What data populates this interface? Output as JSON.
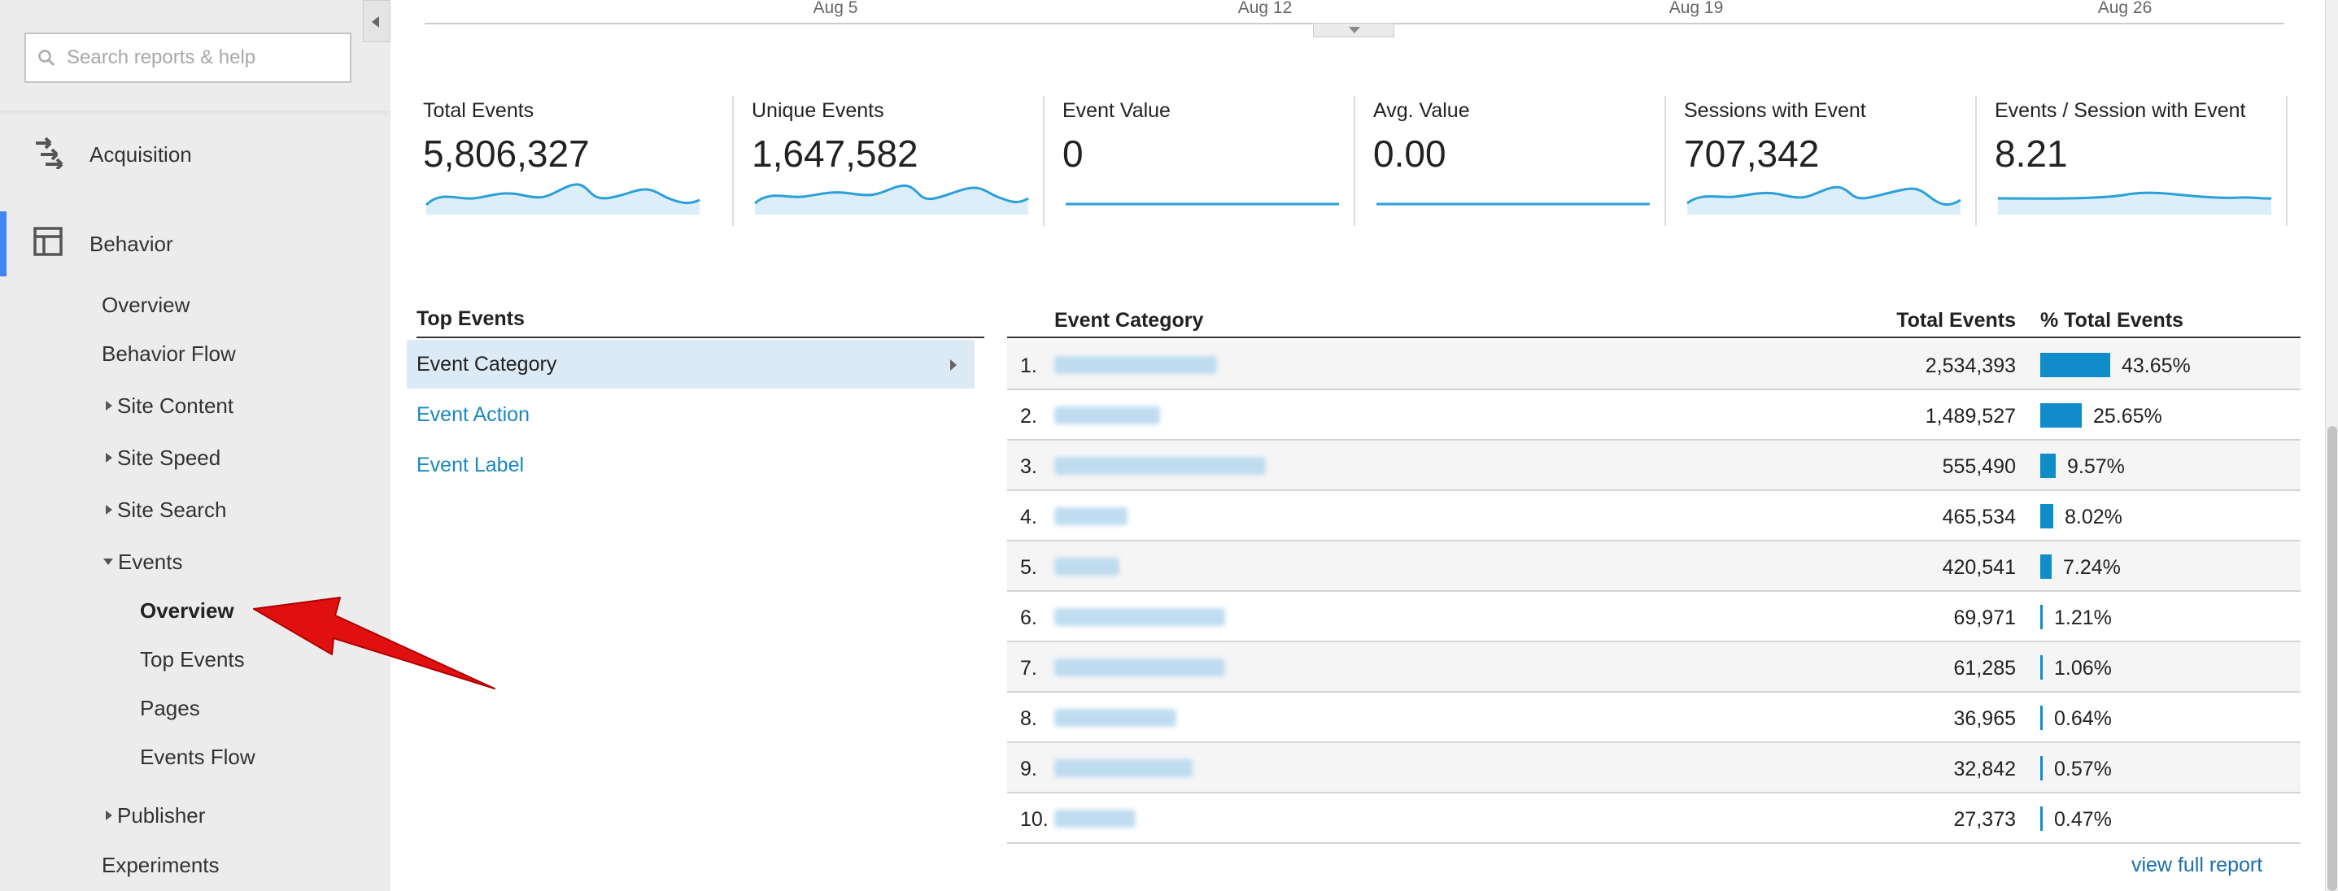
{
  "sidebar": {
    "search_placeholder": "Search reports & help",
    "acquisition_label": "Acquisition",
    "behavior_label": "Behavior",
    "items": {
      "overview": "Overview",
      "behavior_flow": "Behavior Flow",
      "site_content": "Site Content",
      "site_speed": "Site Speed",
      "site_search": "Site Search",
      "events": "Events",
      "events_overview": "Overview",
      "top_events": "Top Events",
      "pages": "Pages",
      "events_flow": "Events Flow",
      "publisher": "Publisher",
      "experiments": "Experiments"
    },
    "active_color": "#4285f4"
  },
  "timeline": {
    "labels": [
      "Aug 5",
      "Aug 12",
      "Aug 19",
      "Aug 26"
    ]
  },
  "metrics": [
    {
      "name": "Total Events",
      "value": "5,806,327",
      "sparkline": "wavy"
    },
    {
      "name": "Unique Events",
      "value": "1,647,582",
      "sparkline": "wavy"
    },
    {
      "name": "Event Value",
      "value": "0",
      "sparkline": "flat"
    },
    {
      "name": "Avg. Value",
      "value": "0.00",
      "sparkline": "flat"
    },
    {
      "name": "Sessions with Event",
      "value": "707,342",
      "sparkline": "wavy"
    },
    {
      "name": "Events / Session with Event",
      "value": "8.21",
      "sparkline": "gentle"
    }
  ],
  "top_events": {
    "header": "Top Events",
    "items": [
      {
        "label": "Event Category",
        "selected": true
      },
      {
        "label": "Event Action",
        "selected": false
      },
      {
        "label": "Event Label",
        "selected": false
      }
    ]
  },
  "event_table": {
    "headers": {
      "category": "Event Category",
      "total": "Total Events",
      "pct": "% Total Events"
    },
    "rows": [
      {
        "rank": "1.",
        "total": "2,534,393",
        "pct": "43.65%",
        "share": 43.65
      },
      {
        "rank": "2.",
        "total": "1,489,527",
        "pct": "25.65%",
        "share": 25.65
      },
      {
        "rank": "3.",
        "total": "555,490",
        "pct": "9.57%",
        "share": 9.57
      },
      {
        "rank": "4.",
        "total": "465,534",
        "pct": "8.02%",
        "share": 8.02
      },
      {
        "rank": "5.",
        "total": "420,541",
        "pct": "7.24%",
        "share": 7.24
      },
      {
        "rank": "6.",
        "total": "69,971",
        "pct": "1.21%",
        "share": 1.21
      },
      {
        "rank": "7.",
        "total": "61,285",
        "pct": "1.06%",
        "share": 1.06
      },
      {
        "rank": "8.",
        "total": "36,965",
        "pct": "0.64%",
        "share": 0.64
      },
      {
        "rank": "9.",
        "total": "32,842",
        "pct": "0.57%",
        "share": 0.57
      },
      {
        "rank": "10.",
        "total": "27,373",
        "pct": "0.47%",
        "share": 0.47
      }
    ],
    "bar_color": "#0f8cc9",
    "view_full_report": "view full report"
  },
  "annotation_arrow_color": "#e01010"
}
